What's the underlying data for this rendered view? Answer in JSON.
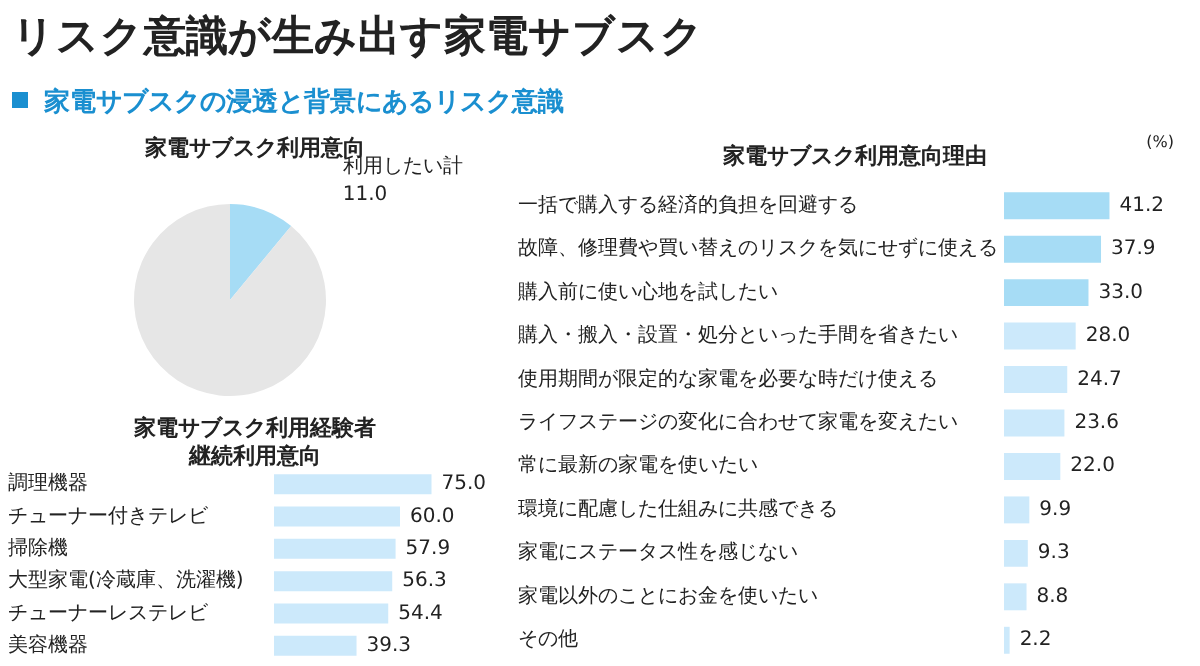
{
  "chart_data": [
    {
      "type": "other",
      "title": "リスク意識が生み出す家電サブスク",
      "subtitle": "家電サブスクの浸透と背景にあるリスク意識"
    },
    {
      "type": "pie",
      "title": "家電サブスク利用意向",
      "categories": [
        "利用したい計",
        null
      ],
      "values": [
        11.0,
        89.0
      ],
      "colors": [
        "#a6dcf5",
        "#e6e6e6"
      ],
      "value_labels": [
        "11.0",
        null
      ]
    },
    {
      "type": "bar",
      "orientation": "horizontal",
      "title": "家電サブスク利用経験者継続利用意向",
      "categories": [
        "調理機器",
        "チューナー付きテレビ",
        "掃除機",
        "大型家電(冷蔵庫、洗濯機)",
        "チューナーレステレビ",
        "美容機器"
      ],
      "values": [
        75.0,
        60.0,
        57.9,
        56.3,
        54.4,
        39.3
      ],
      "color": "#cce9fb",
      "value_labels": [
        "75.0",
        "60.0",
        "57.9",
        "56.3",
        "54.4",
        "39.3"
      ]
    },
    {
      "type": "bar",
      "orientation": "horizontal",
      "title": "家電サブスク利用意向理由",
      "annotations": [
        "(%)"
      ],
      "categories": [
        "一括で購入する経済的負担を回避する",
        "故障、修理費や買い替えのリスクを気にせずに使える",
        "購入前に使い心地を試したい",
        "購入・搬入・設置・処分といった手間を省きたい",
        "使用期間が限定的な家電を必要な時だけ使える",
        "ライフステージの変化に合わせて家電を変えたい",
        "常に最新の家電を使いたい",
        "環境に配慮した仕組みに共感できる",
        "家電にステータス性を感じない",
        "家電以外のことにお金を使いたい",
        "その他"
      ],
      "values": [
        41.2,
        37.9,
        33.0,
        28.0,
        24.7,
        23.6,
        22.0,
        9.9,
        9.3,
        8.8,
        2.2
      ],
      "colors": [
        "#a6dcf5",
        "#a6dcf5",
        "#a6dcf5",
        "#cce9fb",
        "#cce9fb",
        "#cce9fb",
        "#cce9fb",
        "#cce9fb",
        "#cce9fb",
        "#cce9fb",
        "#cce9fb"
      ],
      "value_labels": [
        "41.2",
        "37.9",
        "33.0",
        "28.0",
        "24.7",
        "23.6",
        "22.0",
        "9.9",
        "9.3",
        "8.8",
        "2.2"
      ]
    }
  ]
}
